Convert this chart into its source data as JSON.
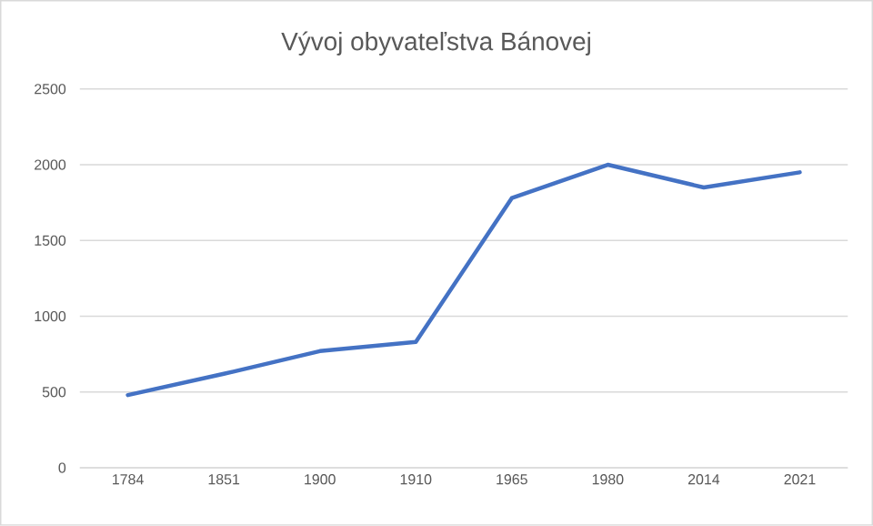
{
  "chart_data": {
    "type": "line",
    "title": "Vývoj obyvateľstva Bánovej",
    "categories": [
      "1784",
      "1851",
      "1900",
      "1910",
      "1965",
      "1980",
      "2014",
      "2021"
    ],
    "values": [
      480,
      620,
      770,
      830,
      1780,
      2000,
      1850,
      1950
    ],
    "color": "#4472c4",
    "ylim": [
      0,
      2500
    ],
    "yticks": [
      0,
      500,
      1000,
      1500,
      2000,
      2500
    ],
    "grid": "y"
  }
}
